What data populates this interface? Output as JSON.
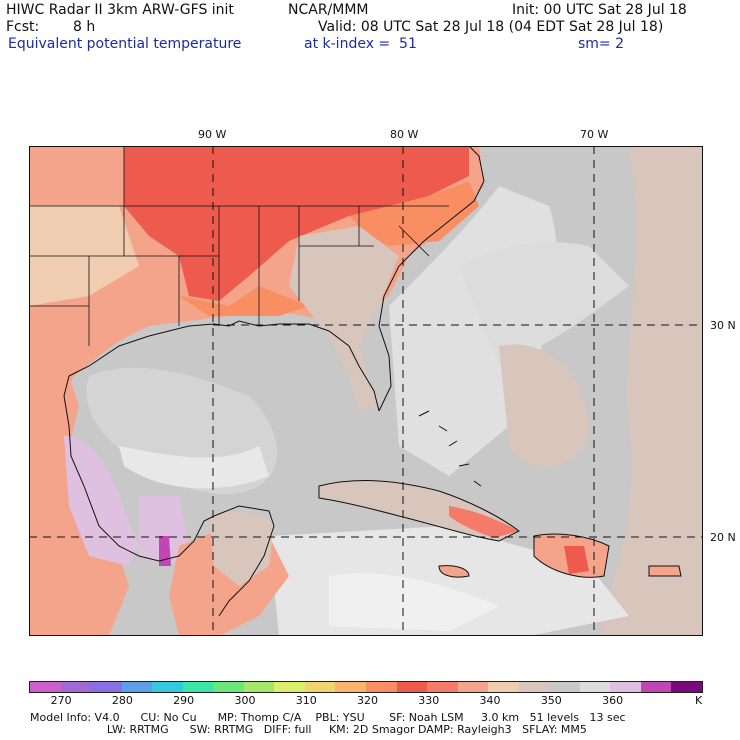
{
  "header": {
    "title": "HIWC Radar II 3km ARW-GFS init",
    "org": "NCAR/MMM",
    "init": "Init: 00 UTC Sat 28 Jul 18",
    "fcst_label": "Fcst:",
    "fcst_value": "8 h",
    "valid": "Valid: 08 UTC Sat 28 Jul 18 (04 EDT Sat 28 Jul 18)",
    "field": "Equivalent potential temperature",
    "level": "at k-index =  51",
    "smooth": "sm= 2"
  },
  "map": {
    "lon_labels": [
      "90 W",
      "80 W",
      "70 W"
    ],
    "lat_labels": [
      "30 N",
      "20 N"
    ]
  },
  "colorbar": {
    "colors": [
      "#cc5fcc",
      "#a06ad2",
      "#8a6ee6",
      "#5d9ee6",
      "#36c8dc",
      "#3ce6a6",
      "#6ae67a",
      "#a6e66a",
      "#dcee6a",
      "#f0d26e",
      "#f8b46a",
      "#f88e62",
      "#ee5a4e",
      "#f47a6a",
      "#f4a48a",
      "#f0ccb0",
      "#d8c6bc",
      "#c8c8c8",
      "#dcdcdc",
      "#e0c0e0",
      "#c046b4",
      "#7a0a7a"
    ],
    "tick_labels": [
      "270",
      "280",
      "290",
      "300",
      "310",
      "320",
      "330",
      "340",
      "350",
      "360"
    ],
    "unit": "K"
  },
  "footer": {
    "line1": "Model Info: V4.0      CU: No Cu      MP: Thomp C/A    PBL: YSU       SF: Noah LSM     3.0 km   51 levels   13 sec",
    "line2": "                      LW: RRTMG      SW: RRTMG   DIFF: full     KM: 2D Smagor DAMP: Rayleigh3   SFLAY: MM5"
  }
}
